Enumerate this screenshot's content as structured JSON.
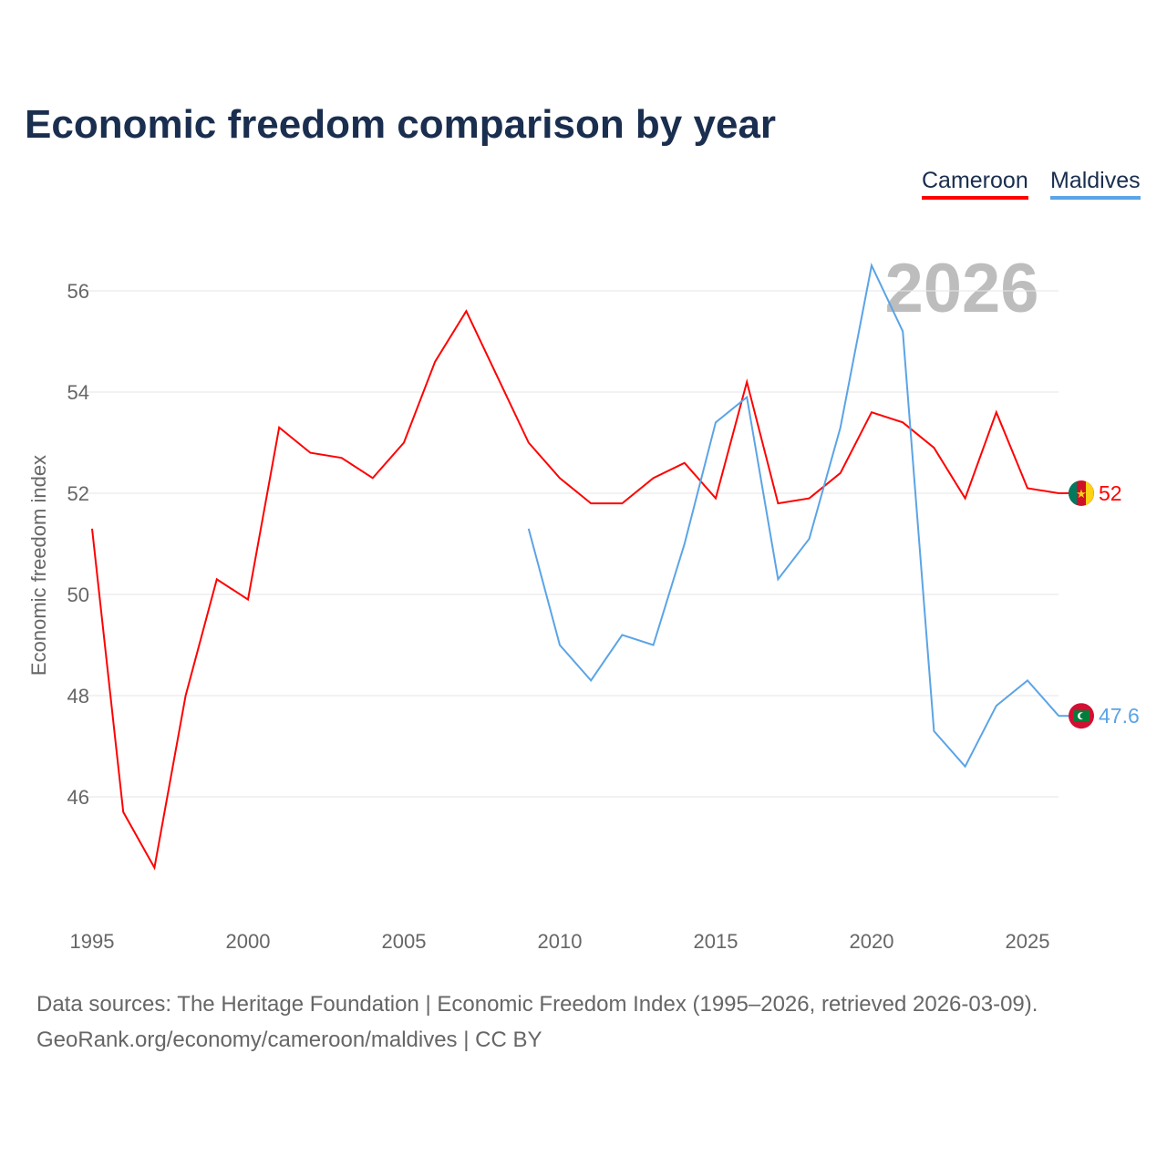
{
  "title": "Economic freedom comparison by year",
  "footer": {
    "line1": "Data sources: The Heritage Foundation | Economic Freedom Index (1995–2026, retrieved 2026-03-09).",
    "line2": "GeoRank.org/economy/cameroon/maldives | CC BY"
  },
  "chart_data": {
    "type": "line",
    "title": "Economic freedom comparison by year",
    "xlabel": "",
    "ylabel": "Economic freedom index",
    "xlim": [
      1995,
      2026
    ],
    "ylim": [
      44,
      57
    ],
    "x_ticks": [
      "1995",
      "2000",
      "2005",
      "2010",
      "2015",
      "2020",
      "2025"
    ],
    "y_ticks": [
      "46",
      "48",
      "50",
      "52",
      "54",
      "56"
    ],
    "watermark_year": "2026",
    "legend_position": "top-right",
    "series": [
      {
        "name": "Cameroon",
        "color": "#ff0000",
        "end_label": "52",
        "x": [
          1995,
          1996,
          1997,
          1998,
          1999,
          2000,
          2001,
          2002,
          2003,
          2004,
          2005,
          2006,
          2007,
          2008,
          2009,
          2010,
          2011,
          2012,
          2013,
          2014,
          2015,
          2016,
          2017,
          2018,
          2019,
          2020,
          2021,
          2022,
          2023,
          2024,
          2025,
          2026
        ],
        "values": [
          51.3,
          45.7,
          44.6,
          48.0,
          50.3,
          49.9,
          53.3,
          52.8,
          52.7,
          52.3,
          53.0,
          54.6,
          55.6,
          54.3,
          53.0,
          52.3,
          51.8,
          51.8,
          52.3,
          52.6,
          51.9,
          54.2,
          51.8,
          51.9,
          52.4,
          53.6,
          53.4,
          52.9,
          51.9,
          53.6,
          52.1,
          52.0
        ]
      },
      {
        "name": "Maldives",
        "color": "#5ba4e6",
        "end_label": "47.6",
        "x": [
          2009,
          2010,
          2011,
          2012,
          2013,
          2014,
          2015,
          2016,
          2017,
          2018,
          2019,
          2020,
          2021,
          2022,
          2023,
          2024,
          2025,
          2026
        ],
        "values": [
          51.3,
          49.0,
          48.3,
          49.2,
          49.0,
          51.0,
          53.4,
          53.9,
          50.3,
          51.1,
          53.3,
          56.5,
          55.2,
          47.3,
          46.6,
          47.8,
          48.3,
          47.6
        ]
      }
    ]
  }
}
